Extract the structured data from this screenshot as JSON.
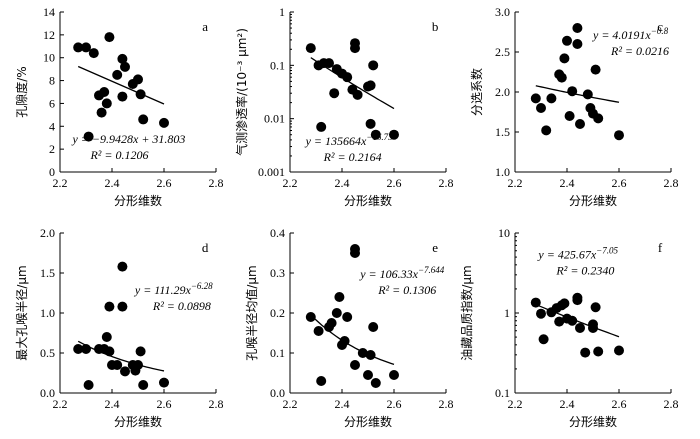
{
  "chart_data": [
    {
      "panel": "a",
      "type": "scatter",
      "ylabel": "孔隙度/%",
      "xlabel": "分形维数",
      "yscale": "linear",
      "xlim": [
        2.2,
        2.8
      ],
      "ylim": [
        0,
        14
      ],
      "xticks": [
        "2.2",
        "2.4",
        "2.6",
        "2.8"
      ],
      "yticks": [
        "0",
        "2",
        "4",
        "6",
        "8",
        "10",
        "12",
        "14"
      ],
      "points": [
        [
          2.27,
          10.9
        ],
        [
          2.3,
          10.9
        ],
        [
          2.33,
          10.4
        ],
        [
          2.35,
          6.7
        ],
        [
          2.36,
          5.2
        ],
        [
          2.37,
          7.0
        ],
        [
          2.38,
          6.0
        ],
        [
          2.39,
          11.8
        ],
        [
          2.42,
          8.5
        ],
        [
          2.44,
          9.9
        ],
        [
          2.45,
          9.2
        ],
        [
          2.44,
          6.6
        ],
        [
          2.48,
          7.7
        ],
        [
          2.5,
          8.1
        ],
        [
          2.51,
          6.8
        ],
        [
          2.52,
          4.6
        ],
        [
          2.31,
          3.1
        ],
        [
          2.6,
          4.3
        ]
      ],
      "trend": {
        "kind": "linear",
        "a": -9.9428,
        "b": 31.803
      },
      "equation": "y = −9.9428x + 31.803",
      "r2": "R² = 0.1206"
    },
    {
      "panel": "b",
      "type": "scatter",
      "ylabel": "气测渗透率/(10⁻³ μm²)",
      "xlabel": "分形维数",
      "yscale": "log",
      "xlim": [
        2.2,
        2.8
      ],
      "ylim": [
        0.001,
        1
      ],
      "xticks": [
        "2.2",
        "2.4",
        "2.6",
        "2.8"
      ],
      "yticks": [
        "0.001",
        "0.01",
        "0.1",
        "1"
      ],
      "points": [
        [
          2.28,
          0.21
        ],
        [
          2.31,
          0.1
        ],
        [
          2.33,
          0.11
        ],
        [
          2.35,
          0.11
        ],
        [
          2.38,
          0.085
        ],
        [
          2.37,
          0.03
        ],
        [
          2.4,
          0.07
        ],
        [
          2.42,
          0.06
        ],
        [
          2.44,
          0.035
        ],
        [
          2.45,
          0.26
        ],
        [
          2.45,
          0.21
        ],
        [
          2.46,
          0.028
        ],
        [
          2.5,
          0.04
        ],
        [
          2.51,
          0.042
        ],
        [
          2.52,
          0.1
        ],
        [
          2.32,
          0.007
        ],
        [
          2.51,
          0.008
        ],
        [
          2.53,
          0.005
        ],
        [
          2.6,
          0.005
        ]
      ],
      "trend": {
        "kind": "power",
        "a": 135664,
        "b": -16.73
      },
      "equation": "y = 135664x^−16.73",
      "r2": "R² = 0.2164"
    },
    {
      "panel": "c",
      "type": "scatter",
      "ylabel": "分选系数",
      "xlabel": "分形维数",
      "yscale": "linear",
      "xlim": [
        2.2,
        2.8
      ],
      "ylim": [
        1.0,
        3.0
      ],
      "xticks": [
        "2.2",
        "2.4",
        "2.6",
        "2.8"
      ],
      "yticks": [
        "1.0",
        "1.5",
        "2.0",
        "2.5",
        "3.0"
      ],
      "points": [
        [
          2.28,
          1.92
        ],
        [
          2.3,
          1.8
        ],
        [
          2.32,
          1.52
        ],
        [
          2.34,
          1.92
        ],
        [
          2.37,
          2.22
        ],
        [
          2.38,
          2.18
        ],
        [
          2.39,
          2.42
        ],
        [
          2.4,
          2.64
        ],
        [
          2.41,
          1.7
        ],
        [
          2.42,
          2.01
        ],
        [
          2.44,
          2.8
        ],
        [
          2.44,
          2.6
        ],
        [
          2.45,
          1.6
        ],
        [
          2.48,
          1.97
        ],
        [
          2.49,
          1.8
        ],
        [
          2.5,
          1.73
        ],
        [
          2.51,
          2.28
        ],
        [
          2.52,
          1.67
        ],
        [
          2.6,
          1.46
        ]
      ],
      "trend": {
        "kind": "power",
        "a": 4.0191,
        "b": -0.8
      },
      "equation": "y = 4.0191x^−0.8",
      "r2": "R² = 0.0216"
    },
    {
      "panel": "d",
      "type": "scatter",
      "ylabel": "最大孔喉半径/μm",
      "xlabel": "分形维数",
      "yscale": "linear",
      "xlim": [
        2.2,
        2.8
      ],
      "ylim": [
        0,
        2.0
      ],
      "xticks": [
        "2.2",
        "2.4",
        "2.6",
        "2.8"
      ],
      "yticks": [
        "0.0",
        "0.5",
        "1.0",
        "1.5",
        "2.0"
      ],
      "points": [
        [
          2.27,
          0.55
        ],
        [
          2.3,
          0.55
        ],
        [
          2.31,
          0.1
        ],
        [
          2.35,
          0.55
        ],
        [
          2.37,
          0.55
        ],
        [
          2.38,
          0.7
        ],
        [
          2.39,
          0.52
        ],
        [
          2.39,
          1.08
        ],
        [
          2.4,
          0.35
        ],
        [
          2.42,
          0.35
        ],
        [
          2.44,
          1.58
        ],
        [
          2.44,
          1.08
        ],
        [
          2.45,
          0.27
        ],
        [
          2.48,
          0.35
        ],
        [
          2.49,
          0.28
        ],
        [
          2.5,
          0.35
        ],
        [
          2.51,
          0.52
        ],
        [
          2.52,
          0.1
        ],
        [
          2.6,
          0.13
        ]
      ],
      "trend": {
        "kind": "power",
        "a": 111.29,
        "b": -6.28
      },
      "equation": "y = 111.29x^−6.28",
      "r2": "R² = 0.0898"
    },
    {
      "panel": "e",
      "type": "scatter",
      "ylabel": "孔喉半径均值/μm",
      "xlabel": "分形维数",
      "yscale": "linear",
      "xlim": [
        2.2,
        2.8
      ],
      "ylim": [
        0,
        0.4
      ],
      "xticks": [
        "2.2",
        "2.4",
        "2.6",
        "2.8"
      ],
      "yticks": [
        "0.0",
        "0.1",
        "0.2",
        "0.3",
        "0.4"
      ],
      "points": [
        [
          2.28,
          0.19
        ],
        [
          2.31,
          0.155
        ],
        [
          2.32,
          0.03
        ],
        [
          2.35,
          0.165
        ],
        [
          2.36,
          0.175
        ],
        [
          2.38,
          0.2
        ],
        [
          2.39,
          0.24
        ],
        [
          2.4,
          0.12
        ],
        [
          2.41,
          0.13
        ],
        [
          2.42,
          0.19
        ],
        [
          2.45,
          0.36
        ],
        [
          2.45,
          0.35
        ],
        [
          2.45,
          0.07
        ],
        [
          2.48,
          0.1
        ],
        [
          2.5,
          0.045
        ],
        [
          2.51,
          0.095
        ],
        [
          2.52,
          0.165
        ],
        [
          2.53,
          0.025
        ],
        [
          2.6,
          0.045
        ]
      ],
      "trend": {
        "kind": "power",
        "a": 106.33,
        "b": -7.644
      },
      "equation": "y = 106.33x^−7.644",
      "r2": "R² = 0.1306"
    },
    {
      "panel": "f",
      "type": "scatter",
      "ylabel": "油藏品质指数/μm",
      "xlabel": "分形维数",
      "yscale": "log",
      "xlim": [
        2.2,
        2.8
      ],
      "ylim": [
        0.1,
        10
      ],
      "xticks": [
        "2.2",
        "2.4",
        "2.6",
        "2.8"
      ],
      "yticks": [
        "0.1",
        "1",
        "10"
      ],
      "points": [
        [
          2.28,
          1.35
        ],
        [
          2.3,
          0.98
        ],
        [
          2.31,
          0.47
        ],
        [
          2.34,
          1.02
        ],
        [
          2.36,
          1.15
        ],
        [
          2.37,
          0.78
        ],
        [
          2.38,
          1.25
        ],
        [
          2.39,
          1.32
        ],
        [
          2.4,
          0.85
        ],
        [
          2.42,
          0.8
        ],
        [
          2.44,
          1.55
        ],
        [
          2.44,
          1.45
        ],
        [
          2.45,
          0.65
        ],
        [
          2.47,
          0.32
        ],
        [
          2.5,
          0.72
        ],
        [
          2.51,
          1.18
        ],
        [
          2.5,
          0.65
        ],
        [
          2.52,
          0.33
        ],
        [
          2.6,
          0.34
        ]
      ],
      "trend": {
        "kind": "power",
        "a": 425.67,
        "b": -7.05
      },
      "equation": "y = 425.67x^−7.05",
      "r2": "R² = 0.2340"
    }
  ]
}
